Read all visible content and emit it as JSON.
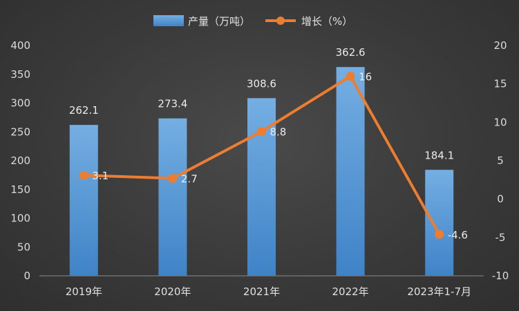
{
  "chart_data": {
    "type": "bar+line",
    "categories": [
      "2019年",
      "2020年",
      "2021年",
      "2022年",
      "2023年1-7月"
    ],
    "series": [
      {
        "name": "产量（万吨）",
        "kind": "bar",
        "axis": "left",
        "values": [
          262.1,
          273.4,
          308.6,
          362.6,
          184.1
        ],
        "labels": [
          "262.1",
          "273.4",
          "308.6",
          "362.6",
          "184.1"
        ],
        "color": "#5b9bd5"
      },
      {
        "name": "增长（%）",
        "kind": "line",
        "axis": "right",
        "values": [
          3.1,
          2.7,
          8.8,
          16,
          -4.6
        ],
        "labels": [
          "3.1",
          "2.7",
          "8.8",
          "16",
          "-4.6"
        ],
        "color": "#ed7d31"
      }
    ],
    "y_left": {
      "min": 0,
      "max": 400,
      "step": 50,
      "ticks": [
        "0",
        "50",
        "100",
        "150",
        "200",
        "250",
        "300",
        "350",
        "400"
      ]
    },
    "y_right": {
      "min": -10,
      "max": 20,
      "step": 5,
      "ticks": [
        "-10",
        "-5",
        "0",
        "5",
        "10",
        "15",
        "20"
      ]
    },
    "legend": {
      "position": "top-center"
    },
    "grid": false,
    "background": "#3d3d3d"
  }
}
